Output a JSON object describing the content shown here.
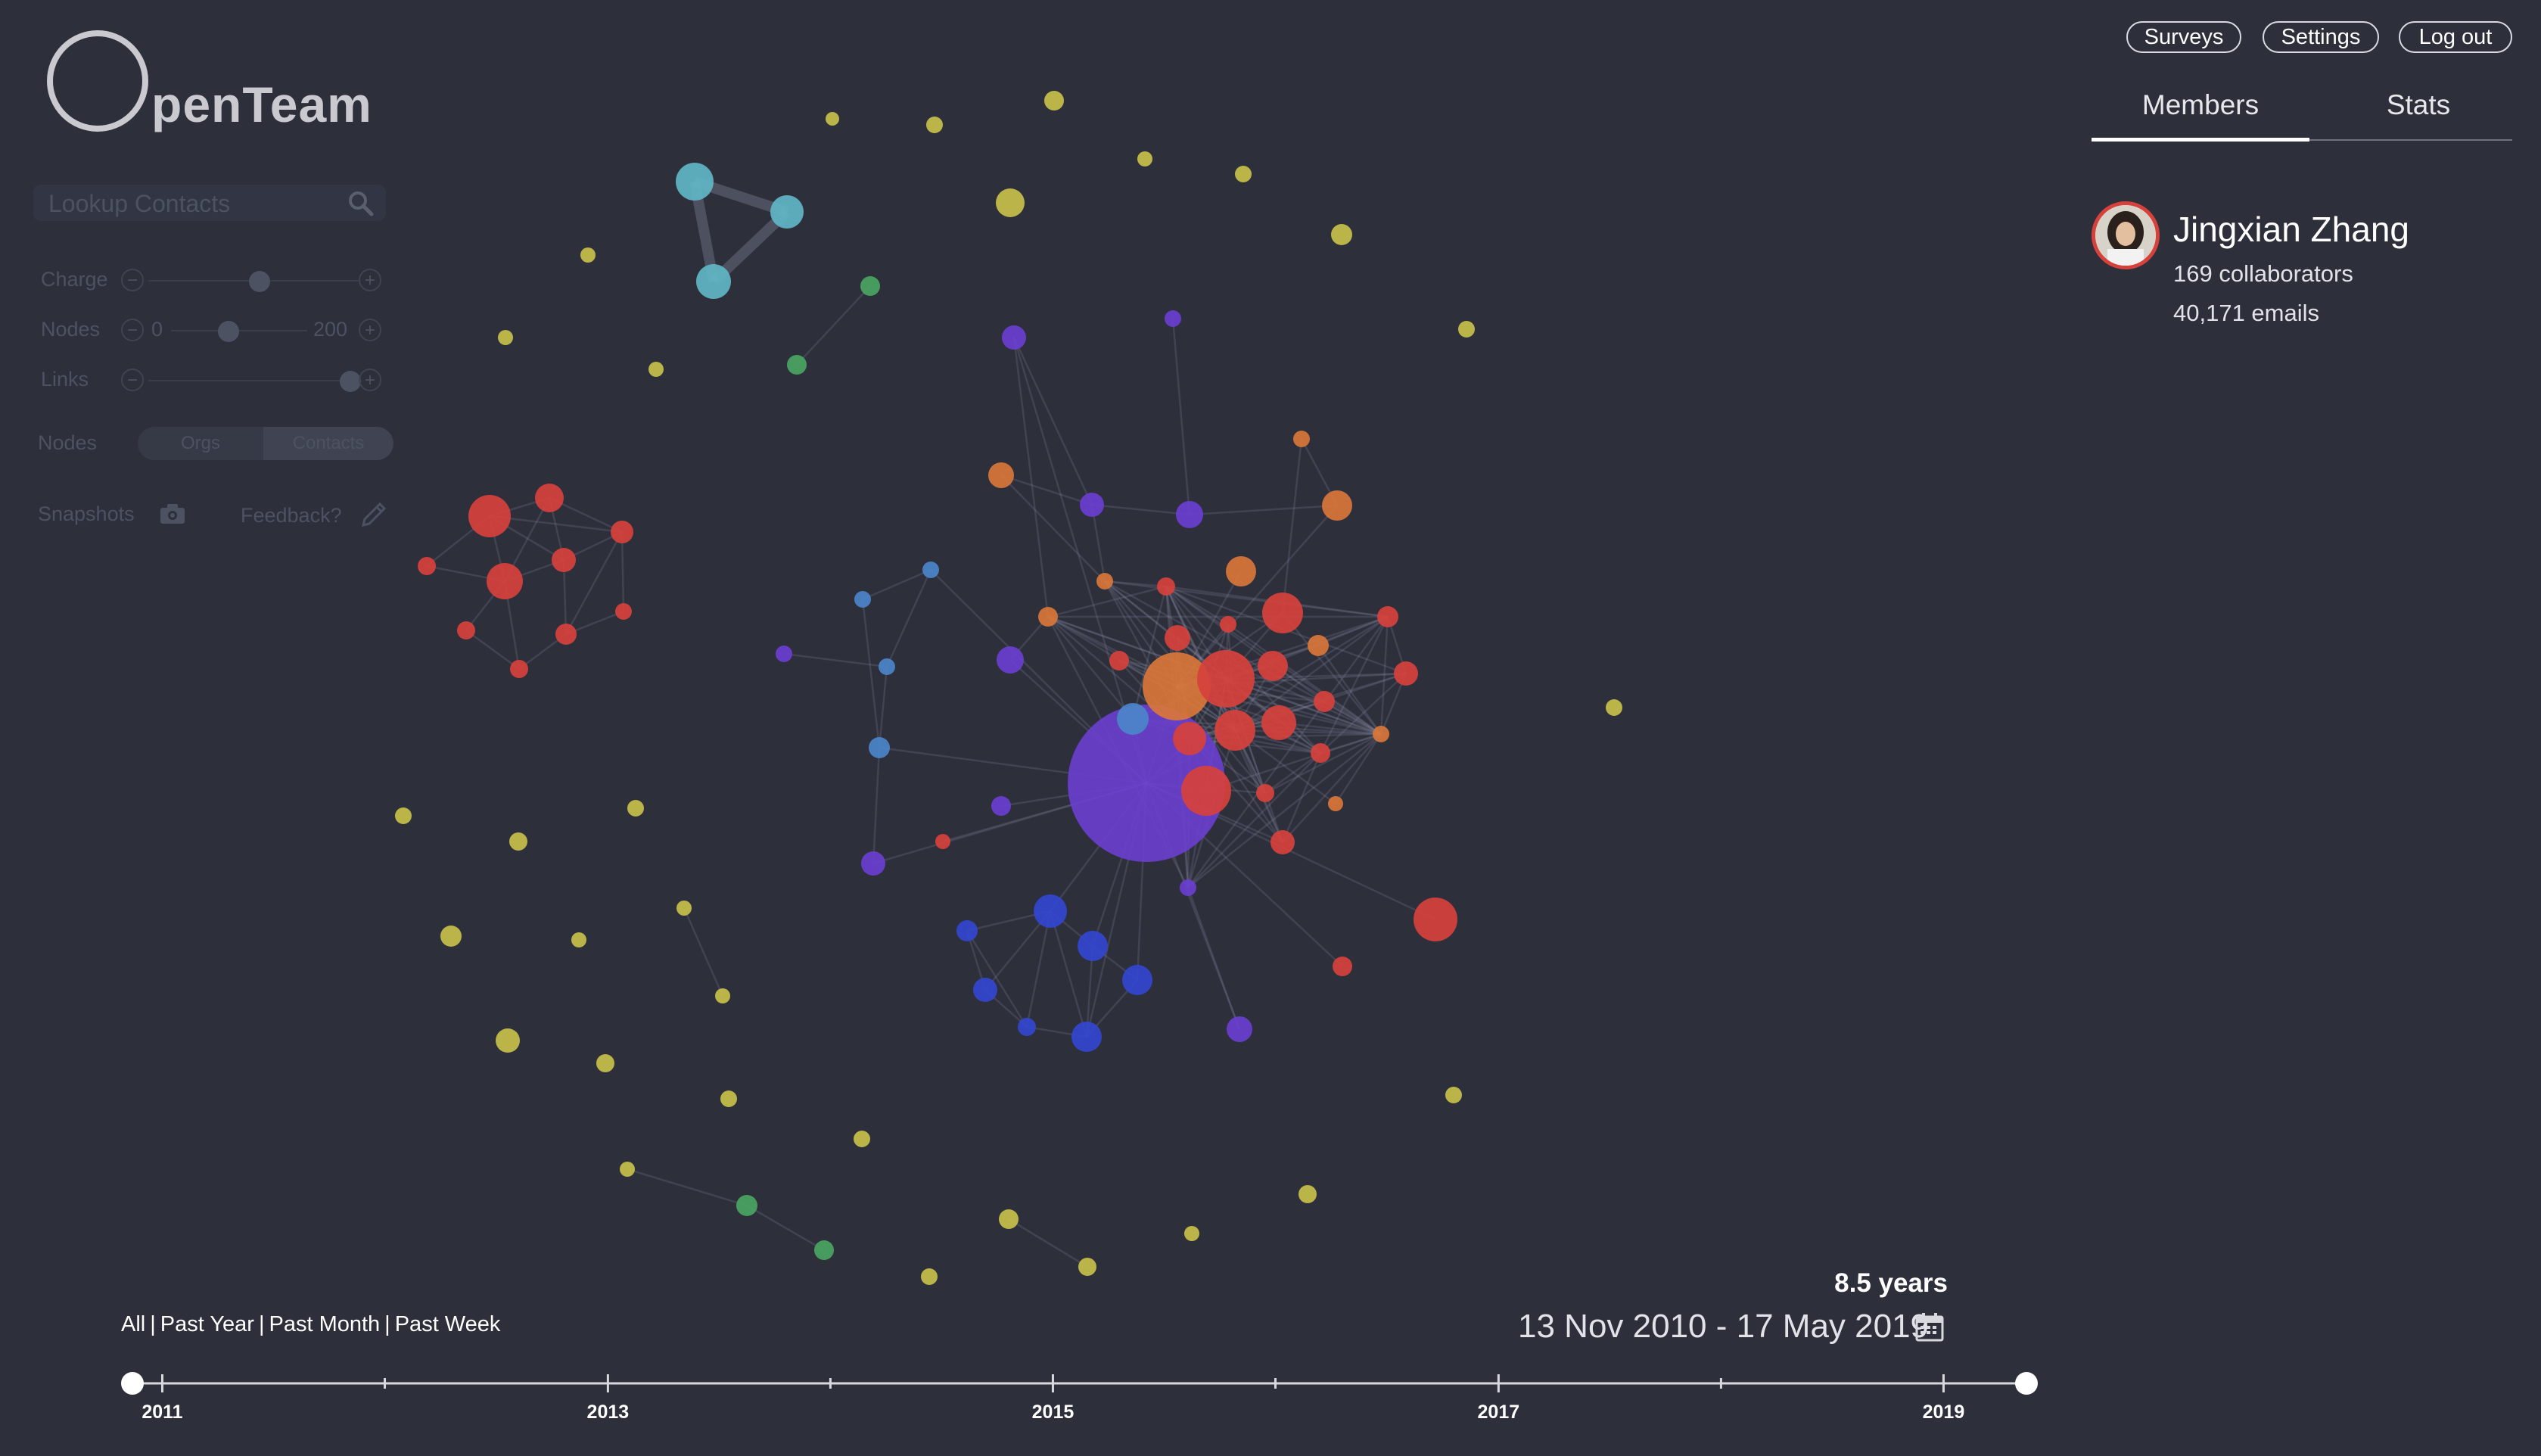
{
  "brand": {
    "name": "penTeam"
  },
  "search": {
    "placeholder": "Lookup Contacts"
  },
  "controls": {
    "charge_label": "Charge",
    "nodes_label": "Nodes",
    "nodes_min": "0",
    "nodes_max": "200",
    "links_label": "Links",
    "node_type_label": "Nodes",
    "node_type_options": [
      "Orgs",
      "Contacts"
    ],
    "node_type_selected": "Contacts",
    "snapshots_label": "Snapshots",
    "feedback_label": "Feedback?",
    "charge_level": 0.53,
    "nodes_level": 0.42,
    "links_level": 0.96,
    "minus_glyph": "−",
    "plus_glyph": "+"
  },
  "header": {
    "buttons": [
      "Surveys",
      "Settings",
      "Log out"
    ]
  },
  "tabs": {
    "items": [
      "Members",
      "Stats"
    ],
    "active": "Members"
  },
  "member": {
    "name": "Jingxian Zhang",
    "collaborators": "169 collaborators",
    "emails": "40,171 emails"
  },
  "timeline": {
    "quick_ranges": [
      "All",
      "Past Year",
      "Past Month",
      "Past Week"
    ],
    "separator": "|",
    "duration": "8.5 years",
    "date_range": "13 Nov 2010 - 17 May 2019",
    "year_labels": [
      "2011",
      "2013",
      "2015",
      "2017",
      "2019"
    ],
    "start": "2010-11-13",
    "end": "2019-05-17"
  },
  "colors": {
    "background": "#2d2f3b",
    "yellow": "#c8c04a",
    "teal": "#5fb6c5",
    "green": "#4aa562",
    "red": "#d6413c",
    "orange": "#d9763a",
    "purple": "#6a3fd0",
    "blue": "#3346cf",
    "lightblue": "#4b86c9",
    "edge": "#8a8fa3"
  },
  "icons": [
    "search-icon",
    "camera-icon",
    "pencil-icon",
    "calendar-icon"
  ]
}
